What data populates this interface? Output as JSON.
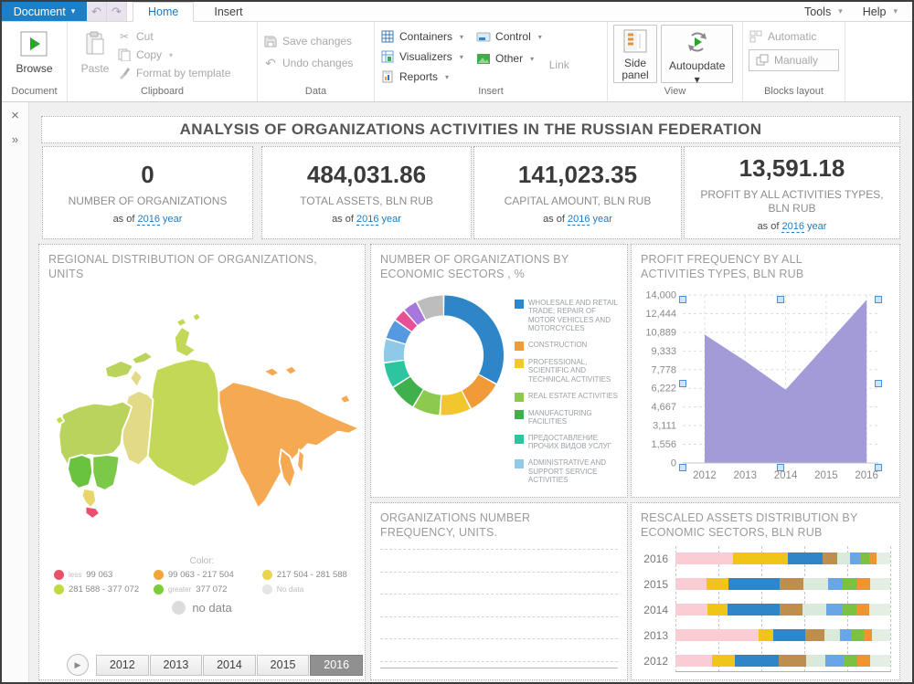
{
  "menubar": {
    "document_button": {
      "label": "Document"
    },
    "tabs": [
      {
        "label": "Home"
      },
      {
        "label": "Insert"
      }
    ],
    "right_menus": [
      {
        "label": "Tools"
      },
      {
        "label": "Help"
      }
    ]
  },
  "ribbon": {
    "document_group": {
      "label": "Document",
      "browse": "Browse"
    },
    "clipboard_group": {
      "label": "Clipboard",
      "paste": "Paste",
      "cut": "Cut",
      "copy": "Copy",
      "format_by_template": "Format by template"
    },
    "data_group": {
      "label": "Data",
      "save_changes": "Save changes",
      "undo_changes": "Undo changes"
    },
    "insert_group": {
      "label": "Insert",
      "containers": "Containers",
      "visualizers": "Visualizers",
      "reports": "Reports",
      "control": "Control",
      "other": "Other",
      "link": "Link"
    },
    "view_group": {
      "label": "View",
      "side_panel": "Side panel",
      "autoupdate": "Autoupdate"
    },
    "blocks_group": {
      "label": "Blocks layout",
      "automatic": "Automatic",
      "manually": "Manually"
    }
  },
  "side_strip": {
    "close_icon": "×",
    "expand_icon": "»"
  },
  "dashboard": {
    "title": "ANALYSIS OF ORGANIZATIONS ACTIVITIES IN THE RUSSIAN FEDERATION",
    "as_of_prefix": "as of",
    "as_of_suffix": "year",
    "kpis": [
      {
        "value": "0",
        "label": "NUMBER OF ORGANIZATIONS",
        "year": "2016"
      },
      {
        "value": "484,031.86",
        "label": "TOTAL ASSETS, BLN RUB",
        "year": "2016"
      },
      {
        "value": "141,023.35",
        "label": "CAPITAL AMOUNT, BLN RUB",
        "year": "2016"
      },
      {
        "value": "13,591.18",
        "label": "PROFIT BY ALL ACTIVITIES TYPES, BLN RUB",
        "year": "2016"
      }
    ],
    "map_panel": {
      "title": "REGIONAL DISTRIBUTION OF ORGANIZATIONS, UNITS",
      "legend_title": "Color:",
      "legend": [
        {
          "color": "#e8536a",
          "prefix": "less",
          "text": "99 063"
        },
        {
          "color": "#f2a53a",
          "prefix": "",
          "text": "99 063 - 217 504"
        },
        {
          "color": "#e8d44d",
          "prefix": "",
          "text": "217 504 - 281 588"
        },
        {
          "color": "#c3d944",
          "prefix": "",
          "text": "281 588 - 377 072"
        },
        {
          "color": "#7ccb3b",
          "prefix": "greater",
          "text": "377 072"
        },
        {
          "color": "#e5e5e5",
          "prefix": "",
          "text": "No data"
        }
      ],
      "no_data_label": "no data",
      "years": [
        "2012",
        "2013",
        "2014",
        "2015",
        "2016"
      ],
      "selected_year": "2016",
      "regions": {
        "northwest": "#b9d35c",
        "kola": "#b9d35c",
        "kaliningrad": "#c3d944",
        "central": "#69c33e",
        "volga": "#7cc848",
        "south": "#e8d66b",
        "caucasus": "#e8506e",
        "urals": "#e2da87",
        "siberia": "#c3d857",
        "fareast": "#f5a953"
      }
    }
  },
  "chart_data": [
    {
      "type": "pie",
      "donut": true,
      "title": "NUMBER OF ORGANIZATIONS BY ECONOMIC SECTORS , %",
      "segments": [
        {
          "label": "WHOLESALE AND RETAIL TRADE; REPAIR OF MOTOR VEHICLES AND MOTORCYCLES",
          "color": "#2e86c8",
          "value": 33
        },
        {
          "label": "CONSTRUCTION",
          "color": "#f09a38",
          "value": 9.5
        },
        {
          "label": "PROFESSIONAL, SCIENTIFIC AND TECHNICAL ACTIVITIES",
          "color": "#f2c72e",
          "value": 8.5
        },
        {
          "label": "REAL ESTATE ACTIVITIES",
          "color": "#8dc94e",
          "value": 7.5
        },
        {
          "label": "MANUFACTURING FACILITIES",
          "color": "#3fb04c",
          "value": 7.5
        },
        {
          "label": "ПРЕДОСТАВЛЕНИЕ ПРОЧИХ ВИДОВ УСЛУГ",
          "color": "#2cc5a0",
          "value": 7
        },
        {
          "label": "ADMINISTRATIVE AND SUPPORT SERVICE ACTIVITIES",
          "color": "#8ecae8",
          "value": 6.5
        },
        {
          "label": "",
          "color": "#5599e0",
          "value": 5.5
        },
        {
          "label": "",
          "color": "#e84f96",
          "value": 3.5
        },
        {
          "label": "",
          "color": "#a877dd",
          "value": 4
        },
        {
          "label": "",
          "color": "#bdbdbd",
          "value": 7.5
        }
      ],
      "legend_position": "right"
    },
    {
      "type": "area",
      "title": "PROFIT FREQUENCY BY ALL ACTIVITIES TYPES, BLN RUB",
      "x": [
        "2012",
        "2013",
        "2014",
        "2015",
        "2016"
      ],
      "values": [
        10700,
        8500,
        6100,
        9850,
        13600
      ],
      "ylim": [
        0,
        14000
      ],
      "yticks": [
        "14,000",
        "12,444",
        "10,889",
        "9,333",
        "7,778",
        "6,222",
        "4,667",
        "3,111",
        "1,556",
        "0"
      ],
      "color": "#a29bd8",
      "grid": true,
      "selected": true
    },
    {
      "type": "bar",
      "title": "ORGANIZATIONS NUMBER FREQUENCY, UNITS.",
      "categories": [],
      "values": [],
      "note": "empty chart, gridlines only"
    },
    {
      "type": "bar",
      "stacked": true,
      "horizontal": true,
      "title": "RESCALED ASSETS DISTRIBUTION BY ECONOMIC SECTORS, BLN RUB",
      "categories": [
        "2016",
        "2015",
        "2014",
        "2013",
        "2012"
      ],
      "colors": [
        "#f9cdd3",
        "#f0c419",
        "#2e86c8",
        "#bd8e4d",
        "#daeada",
        "#6aa5e8",
        "#7cc142",
        "#f0952e",
        "#e2efe2"
      ],
      "series_values_pct": [
        [
          26.8,
          25.6,
          16.1,
          6.8,
          6.0,
          4.8,
          4.2,
          3.3,
          6.4
        ],
        [
          14.3,
          10.3,
          24.1,
          10.9,
          11.6,
          6.9,
          6.6,
          6.0,
          9.3
        ],
        [
          15.1,
          9.2,
          24.4,
          10.6,
          10.9,
          7.1,
          6.9,
          6.0,
          9.8
        ],
        [
          38.6,
          6.9,
          14.8,
          9.2,
          7.1,
          5.3,
          5.6,
          4.2,
          8.3
        ],
        [
          16.9,
          10.6,
          20.5,
          12.8,
          8.9,
          8.7,
          6.5,
          5.7,
          9.4
        ]
      ],
      "grid": true
    }
  ]
}
